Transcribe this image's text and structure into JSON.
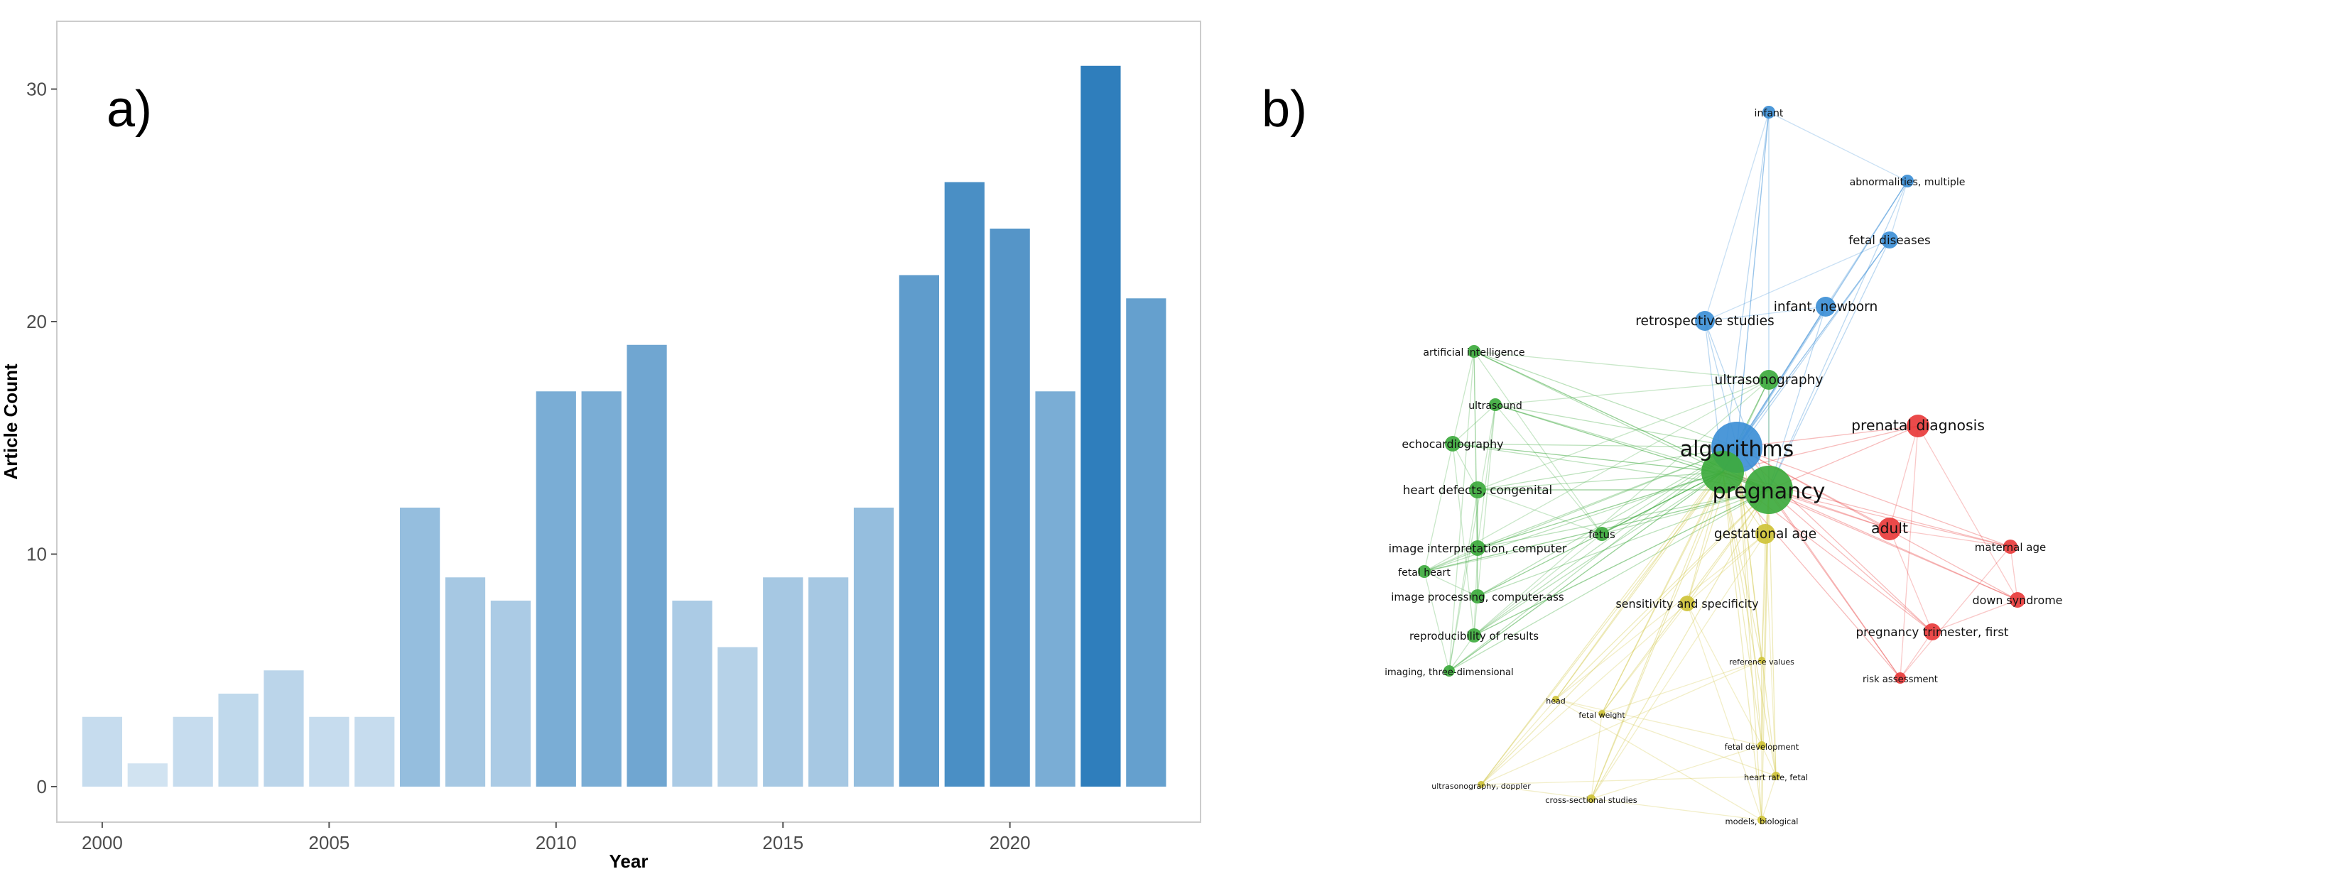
{
  "panels": {
    "left_label": "a)",
    "right_label": "b)"
  },
  "chart_data": {
    "type": "bar",
    "title": "",
    "xlabel": "Year",
    "ylabel": "Article Count",
    "x_ticks": [
      "2000",
      "2005",
      "2010",
      "2015",
      "2020"
    ],
    "y_ticks": [
      "0",
      "10",
      "20",
      "30"
    ],
    "xlim": [
      1999.0,
      2024.2
    ],
    "ylim": [
      0,
      32
    ],
    "color_scale": {
      "low": "#d6e6f3",
      "high": "#2f7ebc"
    },
    "categories": [
      2000,
      2001,
      2002,
      2003,
      2004,
      2005,
      2006,
      2007,
      2008,
      2009,
      2010,
      2011,
      2012,
      2013,
      2014,
      2015,
      2016,
      2017,
      2018,
      2019,
      2020,
      2021,
      2022,
      2023
    ],
    "values": [
      3,
      1,
      3,
      4,
      5,
      3,
      3,
      12,
      9,
      8,
      17,
      17,
      19,
      8,
      6,
      9,
      9,
      12,
      22,
      26,
      24,
      17,
      31,
      21
    ]
  },
  "network": {
    "colors": {
      "blue": "#3d8fd6",
      "green": "#3daa3d",
      "red": "#e83b3b",
      "yellow": "#cfc33a"
    },
    "nodes": [
      {
        "id": "algorithms",
        "label": "algorithms",
        "cluster": "blue",
        "size": 36
      },
      {
        "id": "pregnancy",
        "label": "pregnancy",
        "cluster": "green",
        "size": 34
      },
      {
        "id": "big-green",
        "label": "",
        "cluster": "green",
        "size": 30
      },
      {
        "id": "infant-newborn",
        "label": "infant, newborn",
        "cluster": "blue",
        "size": 14
      },
      {
        "id": "retrospective",
        "label": "retrospective studies",
        "cluster": "blue",
        "size": 14
      },
      {
        "id": "fetal-diseases",
        "label": "fetal diseases",
        "cluster": "blue",
        "size": 12
      },
      {
        "id": "chromosome-abn",
        "label": "abnormalities, multiple",
        "cluster": "blue",
        "size": 9
      },
      {
        "id": "infant",
        "label": "infant",
        "cluster": "blue",
        "size": 9
      },
      {
        "id": "prenatal-diag",
        "label": "prenatal diagnosis",
        "cluster": "red",
        "size": 16
      },
      {
        "id": "adult",
        "label": "adult",
        "cluster": "red",
        "size": 16
      },
      {
        "id": "ptt-first",
        "label": "pregnancy trimester, first",
        "cluster": "red",
        "size": 12
      },
      {
        "id": "down-syndrome",
        "label": "down syndrome",
        "cluster": "red",
        "size": 11
      },
      {
        "id": "maternal-age",
        "label": "maternal age",
        "cluster": "red",
        "size": 10
      },
      {
        "id": "risk-assessment",
        "label": "risk assessment",
        "cluster": "red",
        "size": 8
      },
      {
        "id": "ultrasonography",
        "label": "ultrasonography",
        "cluster": "green",
        "size": 14
      },
      {
        "id": "ultrasound",
        "label": "ultrasound",
        "cluster": "green",
        "size": 9
      },
      {
        "id": "echocardiography",
        "label": "echocardiography",
        "cluster": "green",
        "size": 11
      },
      {
        "id": "heart-defects",
        "label": "heart defects, congenital",
        "cluster": "green",
        "size": 12
      },
      {
        "id": "image-interp",
        "label": "image interpretation, computer",
        "cluster": "green",
        "size": 11
      },
      {
        "id": "fetal-heart",
        "label": "fetal heart",
        "cluster": "green",
        "size": 9
      },
      {
        "id": "image-processing",
        "label": "image processing, computer-ass",
        "cluster": "green",
        "size": 10
      },
      {
        "id": "reproducibility",
        "label": "reproducibility of results",
        "cluster": "green",
        "size": 10
      },
      {
        "id": "imaging-3d",
        "label": "imaging, three-dimensional",
        "cluster": "green",
        "size": 8
      },
      {
        "id": "artificial-int",
        "label": "artificial intelligence",
        "cluster": "green",
        "size": 9
      },
      {
        "id": "fetus",
        "label": "fetus",
        "cluster": "green",
        "size": 10
      },
      {
        "id": "gestational-age",
        "label": "gestational age",
        "cluster": "yellow",
        "size": 14
      },
      {
        "id": "sens-spec",
        "label": "sensitivity and specificity",
        "cluster": "yellow",
        "size": 11
      },
      {
        "id": "fetal-development",
        "label": "fetal development",
        "cluster": "yellow",
        "size": 6
      },
      {
        "id": "heart-rate-fetal",
        "label": "heart rate, fetal",
        "cluster": "yellow",
        "size": 6
      },
      {
        "id": "models-bio",
        "label": "models, biological",
        "cluster": "yellow",
        "size": 6
      },
      {
        "id": "cross-sectional",
        "label": "cross-sectional studies",
        "cluster": "yellow",
        "size": 6
      },
      {
        "id": "us-doppler",
        "label": "ultrasonography, doppler",
        "cluster": "yellow",
        "size": 5
      },
      {
        "id": "head",
        "label": "head",
        "cluster": "yellow",
        "size": 5
      },
      {
        "id": "fetal-weight",
        "label": "fetal weight",
        "cluster": "yellow",
        "size": 5
      },
      {
        "id": "reference-values",
        "label": "reference values",
        "cluster": "yellow",
        "size": 5
      }
    ]
  }
}
